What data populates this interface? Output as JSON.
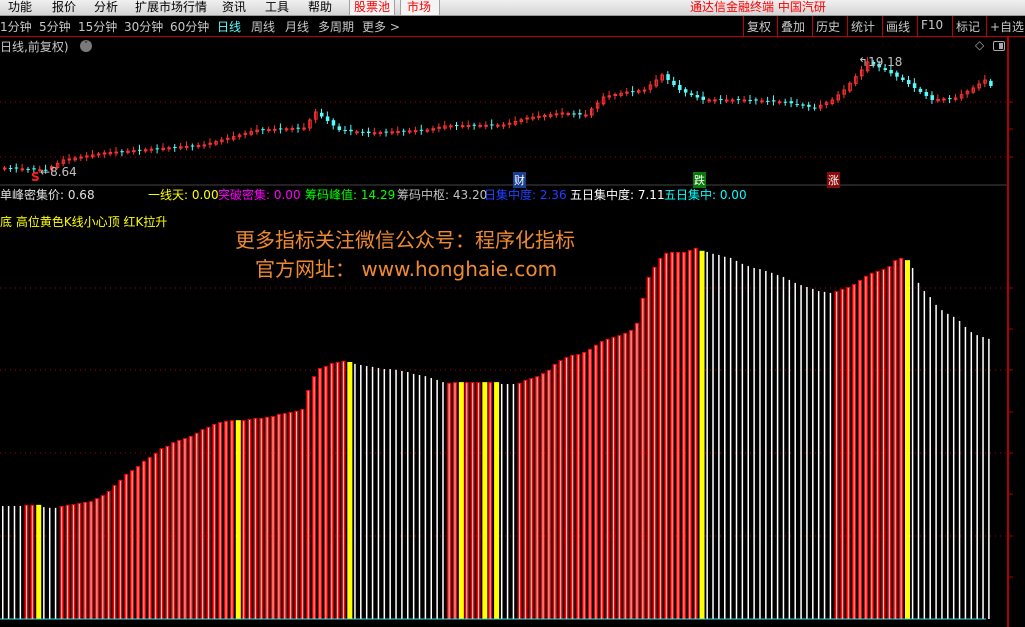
{
  "menu": {
    "items": [
      "功能",
      "报价",
      "分析",
      "扩展市场行情",
      "资讯",
      "工具",
      "帮助"
    ],
    "pool": "股票池",
    "market": "市场",
    "title": "通达信金融终端 中国汽研"
  },
  "periods": {
    "items": [
      "1分钟",
      "5分钟",
      "15分钟",
      "30分钟",
      "60分钟",
      "日线",
      "周线",
      "月线",
      "多周期",
      "更多 >"
    ],
    "active": "日线"
  },
  "toolbar": [
    "复权",
    "叠加",
    "历史",
    "统计",
    "画线",
    "F10",
    "标记",
    "+自选"
  ],
  "chart_title": "日线,前复权)",
  "price_chart": {
    "low_label": "8.64",
    "high_label": "19.18",
    "signal_s": "S",
    "badges": [
      {
        "text": "财",
        "color": "#1a3f8f"
      },
      {
        "text": "跌",
        "color": "#0a7a0a"
      },
      {
        "text": "涨",
        "color": "#8a0a0a"
      }
    ],
    "close_keypoints": [
      [
        0,
        8.83
      ],
      [
        7,
        8.64
      ],
      [
        10,
        9.6
      ],
      [
        17,
        10.27
      ],
      [
        34,
        11.04
      ],
      [
        43,
        12.47
      ],
      [
        51,
        12.66
      ],
      [
        53,
        14.2
      ],
      [
        57,
        12.47
      ],
      [
        62,
        12.18
      ],
      [
        72,
        12.47
      ],
      [
        75,
        12.86
      ],
      [
        85,
        12.95
      ],
      [
        89,
        13.62
      ],
      [
        95,
        14.1
      ],
      [
        99,
        13.91
      ],
      [
        102,
        15.63
      ],
      [
        106,
        16.11
      ],
      [
        109,
        16.3
      ],
      [
        112,
        17.74
      ],
      [
        115,
        16.3
      ],
      [
        119,
        15.35
      ],
      [
        126,
        15.35
      ],
      [
        133,
        15.15
      ],
      [
        138,
        14.58
      ],
      [
        141,
        15.35
      ],
      [
        143,
        16.3
      ],
      [
        146,
        18.22
      ],
      [
        147,
        18.99
      ],
      [
        150,
        18.22
      ],
      [
        153,
        17.26
      ],
      [
        156,
        16.11
      ],
      [
        158,
        15.35
      ],
      [
        162,
        15.54
      ],
      [
        165,
        16.5
      ],
      [
        167,
        17.26
      ],
      [
        168,
        16.69
      ]
    ],
    "up_color": "#ff3232",
    "down_color": "#54fcfc"
  },
  "indicators": [
    {
      "label": "单峰密集价: 0.68",
      "color": "#e0e0e0"
    },
    {
      "label": "一线天: 0.00",
      "color": "#ffff00"
    },
    {
      "label": "突破密集: 0.00",
      "color": "#ff00ff"
    },
    {
      "label": "筹码峰值: 14.29",
      "color": "#00ff00"
    },
    {
      "label": "筹码中枢: 43.20",
      "color": "#c0c0c0"
    },
    {
      "label": "日集中度: 2.36",
      "color": "#2040ff"
    },
    {
      "label": "五日集中度: 7.11",
      "color": "#ffffff"
    },
    {
      "label": "五日集中: 0.00",
      "color": "#00ffff"
    }
  ],
  "hint": "底 高位黄色K线小心顶 红K拉升",
  "watermark": {
    "line1": "更多指标关注微信公众号：程序化指标",
    "line2": "官方网址： www.honghaie.com",
    "color": "#f08a30"
  },
  "chart_data": {
    "type": "bar",
    "ylim": [
      0,
      115
    ],
    "colors": {
      "red": "#ff0000",
      "yellow": "#ffff00",
      "white": "#ffffff"
    },
    "color_runs": [
      [
        "white",
        4
      ],
      [
        "red",
        2
      ],
      [
        "yellow",
        1
      ],
      [
        "white",
        3
      ],
      [
        "red",
        30
      ],
      [
        "yellow",
        1
      ],
      [
        "red",
        18
      ],
      [
        "yellow",
        1
      ],
      [
        "white",
        16
      ],
      [
        "red",
        2
      ],
      [
        "yellow",
        1
      ],
      [
        "red",
        3
      ],
      [
        "yellow",
        1
      ],
      [
        "red",
        1
      ],
      [
        "yellow",
        1
      ],
      [
        "white",
        3
      ],
      [
        "red",
        31
      ],
      [
        "yellow",
        1
      ],
      [
        "white",
        22
      ],
      [
        "red",
        12
      ],
      [
        "yellow",
        1
      ],
      [
        "white",
        14
      ]
    ],
    "values": [
      30.3,
      30.3,
      30.3,
      30.3,
      30.6,
      30.6,
      30.6,
      30.0,
      29.8,
      29.8,
      30.3,
      30.6,
      30.8,
      31.1,
      31.4,
      31.6,
      32.4,
      33.2,
      34.3,
      35.9,
      37.3,
      38.9,
      39.9,
      41.0,
      42.4,
      43.4,
      44.5,
      45.8,
      46.4,
      47.4,
      48.0,
      48.5,
      49.1,
      49.9,
      50.9,
      51.5,
      52.3,
      52.8,
      53.1,
      53.3,
      53.3,
      53.3,
      53.6,
      53.9,
      53.9,
      54.2,
      54.4,
      55.0,
      55.2,
      55.5,
      55.8,
      56.3,
      61.4,
      65.1,
      67.3,
      67.8,
      68.6,
      68.9,
      69.2,
      68.9,
      68.4,
      68.1,
      67.8,
      67.6,
      67.3,
      67.0,
      67.0,
      66.8,
      66.5,
      66.2,
      65.7,
      65.4,
      65.1,
      64.6,
      64.1,
      63.5,
      63.3,
      63.5,
      63.5,
      63.5,
      63.5,
      63.5,
      63.5,
      63.5,
      63.5,
      63.0,
      63.0,
      63.0,
      63.3,
      64.1,
      64.6,
      65.1,
      65.9,
      66.8,
      68.4,
      69.4,
      70.2,
      70.8,
      71.0,
      71.6,
      72.4,
      73.5,
      74.5,
      75.1,
      75.6,
      76.1,
      76.7,
      77.5,
      79.4,
      86.1,
      91.7,
      94.4,
      96.8,
      98.1,
      98.4,
      98.4,
      98.4,
      98.9,
      99.5,
      98.7,
      98.4,
      97.9,
      97.6,
      97.1,
      96.8,
      96.0,
      95.2,
      94.6,
      94.1,
      93.8,
      93.3,
      92.8,
      92.2,
      91.7,
      90.9,
      90.1,
      89.5,
      89.0,
      88.5,
      87.9,
      87.7,
      87.4,
      87.9,
      88.5,
      89.0,
      89.8,
      90.9,
      92.0,
      92.8,
      93.3,
      93.8,
      94.6,
      96.2,
      96.8,
      96.2,
      94.1,
      90.1,
      87.9,
      86.3,
      84.2,
      82.8,
      81.8,
      81.0,
      79.9,
      78.3,
      76.9,
      76.1,
      75.6,
      75.1
    ]
  }
}
